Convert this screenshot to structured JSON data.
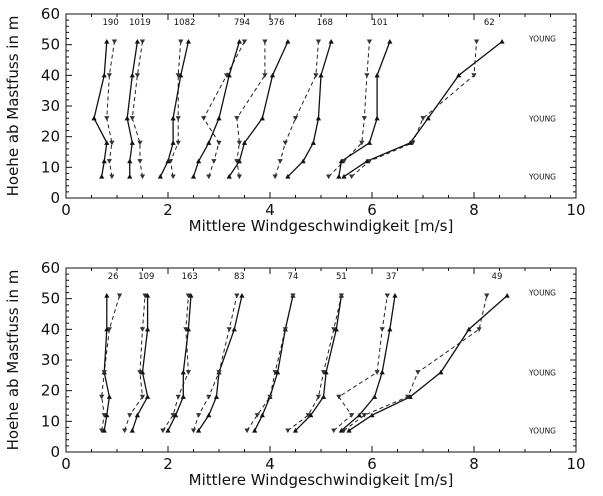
{
  "chart_data": [
    {
      "type": "line",
      "xlabel": "Mittlere Windgeschwindigkeit [m/s]",
      "ylabel": "Hoehe ab Mastfuss in m",
      "xlim": [
        0,
        10
      ],
      "ylim": [
        0,
        60
      ],
      "xticks": [
        0,
        2,
        4,
        6,
        8,
        10
      ],
      "yticks": [
        0,
        10,
        20,
        30,
        40,
        50,
        60
      ],
      "heights": [
        7,
        12,
        18,
        26,
        40,
        51
      ],
      "annotations": [
        "YOUNG",
        "YOUNG",
        "YOUNG"
      ],
      "annotation_heights": [
        52,
        26,
        7
      ],
      "series": [
        {
          "count_label": "190",
          "solid_x": [
            0.7,
            0.75,
            0.8,
            0.55,
            0.75,
            0.8
          ],
          "dashed_x": [
            0.9,
            0.85,
            0.9,
            0.8,
            0.85,
            0.95
          ]
        },
        {
          "count_label": "1019",
          "solid_x": [
            1.25,
            1.25,
            1.3,
            1.2,
            1.3,
            1.4
          ],
          "dashed_x": [
            1.5,
            1.45,
            1.45,
            1.3,
            1.4,
            1.5
          ]
        },
        {
          "count_label": "1082",
          "solid_x": [
            1.85,
            2.0,
            2.1,
            2.1,
            2.25,
            2.4
          ],
          "dashed_x": [
            2.1,
            2.05,
            2.2,
            2.2,
            2.2,
            2.25
          ]
        },
        {
          "count_label": "794",
          "solid_x": [
            2.5,
            2.6,
            2.8,
            3.0,
            3.2,
            3.4
          ],
          "dashed_x": [
            2.8,
            2.9,
            3.0,
            2.7,
            3.15,
            3.5
          ]
        },
        {
          "count_label": "376",
          "solid_x": [
            3.2,
            3.4,
            3.5,
            3.85,
            4.05,
            4.35
          ],
          "dashed_x": [
            3.4,
            3.35,
            3.4,
            3.35,
            3.9,
            3.9
          ]
        },
        {
          "count_label": "168",
          "solid_x": [
            4.35,
            4.65,
            4.85,
            4.95,
            5.0,
            5.2
          ],
          "dashed_x": [
            4.1,
            4.2,
            4.3,
            4.5,
            4.9,
            4.95
          ]
        },
        {
          "count_label": "101",
          "solid_x": [
            5.35,
            5.4,
            5.95,
            6.1,
            6.1,
            6.35
          ],
          "dashed_x": [
            5.15,
            5.45,
            5.8,
            5.85,
            5.9,
            5.95
          ]
        },
        {
          "count_label": "62",
          "solid_x": [
            5.45,
            5.9,
            6.75,
            7.1,
            7.7,
            8.55
          ],
          "dashed_x": [
            5.6,
            5.95,
            6.8,
            7.0,
            8.0,
            8.05
          ]
        }
      ]
    },
    {
      "type": "line",
      "xlabel": "Mittlere Windgeschwindigkeit [m/s]",
      "ylabel": "Hoehe ab Mastfuss in m",
      "xlim": [
        0,
        10
      ],
      "ylim": [
        0,
        60
      ],
      "xticks": [
        0,
        2,
        4,
        6,
        8,
        10
      ],
      "yticks": [
        0,
        10,
        20,
        30,
        40,
        50,
        60
      ],
      "heights": [
        7,
        12,
        18,
        26,
        40,
        51
      ],
      "annotations": [
        "YOUNG",
        "YOUNG",
        "YOUNG"
      ],
      "annotation_heights": [
        52,
        26,
        7
      ],
      "series": [
        {
          "count_label": "26",
          "solid_x": [
            0.75,
            0.8,
            0.85,
            0.75,
            0.8,
            0.8
          ],
          "dashed_x": [
            0.7,
            0.75,
            0.7,
            0.75,
            0.85,
            1.05
          ]
        },
        {
          "count_label": "109",
          "solid_x": [
            1.3,
            1.4,
            1.6,
            1.5,
            1.6,
            1.6
          ],
          "dashed_x": [
            1.15,
            1.25,
            1.5,
            1.45,
            1.5,
            1.55
          ]
        },
        {
          "count_label": "163",
          "solid_x": [
            2.0,
            2.15,
            2.3,
            2.3,
            2.4,
            2.45
          ],
          "dashed_x": [
            1.9,
            2.1,
            2.2,
            2.4,
            2.35,
            2.4
          ]
        },
        {
          "count_label": "83",
          "solid_x": [
            2.6,
            2.8,
            2.95,
            3.0,
            3.3,
            3.45
          ],
          "dashed_x": [
            2.5,
            2.6,
            2.8,
            3.0,
            3.2,
            3.35
          ]
        },
        {
          "count_label": "74",
          "solid_x": [
            3.7,
            3.85,
            4.0,
            4.15,
            4.3,
            4.45
          ],
          "dashed_x": [
            3.55,
            3.75,
            4.0,
            4.1,
            4.3,
            4.45
          ]
        },
        {
          "count_label": "51",
          "solid_x": [
            4.5,
            4.8,
            5.05,
            5.1,
            5.3,
            5.4
          ],
          "dashed_x": [
            4.35,
            4.75,
            4.95,
            5.05,
            5.25,
            5.4
          ]
        },
        {
          "count_label": "37",
          "solid_x": [
            5.4,
            5.75,
            6.05,
            6.2,
            6.35,
            6.45
          ],
          "dashed_x": [
            5.25,
            5.6,
            5.35,
            6.1,
            6.2,
            6.3
          ]
        },
        {
          "count_label": "49",
          "solid_x": [
            5.55,
            6.0,
            6.75,
            7.35,
            7.9,
            8.65
          ],
          "dashed_x": [
            5.45,
            5.85,
            6.7,
            6.9,
            8.1,
            8.25
          ]
        }
      ]
    }
  ]
}
